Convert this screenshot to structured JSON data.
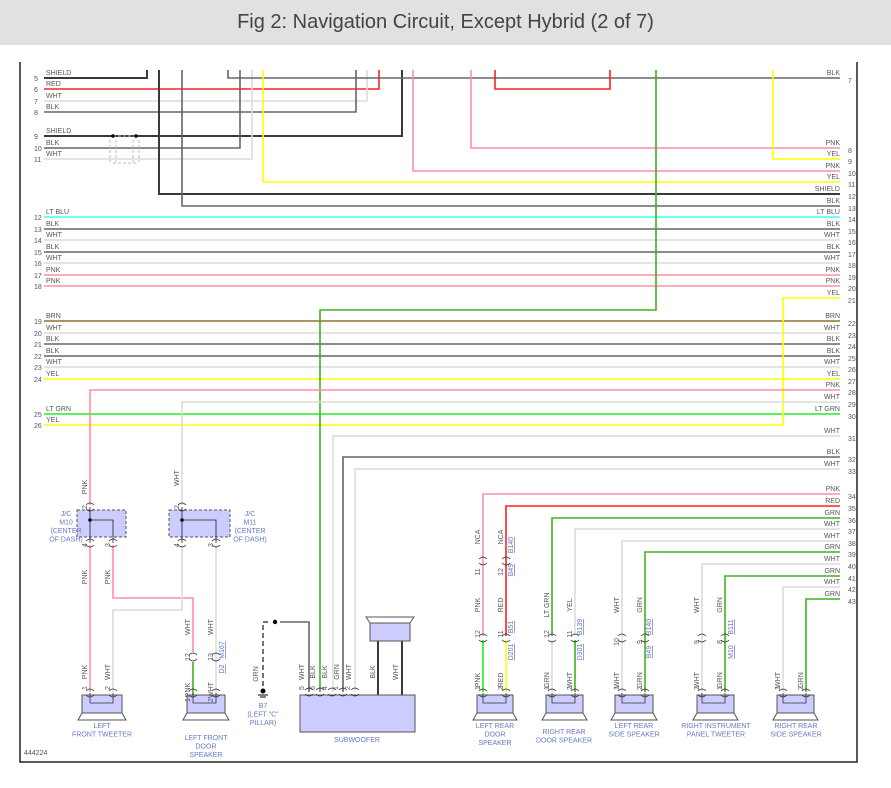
{
  "header": {
    "title": "Fig 2: Navigation Circuit, Except Hybrid (2 of 7)"
  },
  "figure_number": "444224",
  "wire_colors": {
    "SHIELD": "#3a3a3a",
    "BLK": "#666666",
    "WHT": "#dcdcdc",
    "RED": "#ff2020",
    "PNK": "#ff8fa5",
    "YEL": "#ffff00",
    "LT BLU": "#40ffff",
    "BRN": "#8b7332",
    "GRN": "#44b020",
    "LT GRN": "#22ee22"
  },
  "left_pins": [
    {
      "num": "5",
      "label": "SHIELD"
    },
    {
      "num": "6",
      "label": "RED"
    },
    {
      "num": "7",
      "label": "WHT"
    },
    {
      "num": "8",
      "label": "BLK"
    },
    {
      "num": "9",
      "label": "SHIELD"
    },
    {
      "num": "10",
      "label": "BLK"
    },
    {
      "num": "11",
      "label": "WHT"
    },
    {
      "num": "12",
      "label": "LT BLU"
    },
    {
      "num": "13",
      "label": "BLK"
    },
    {
      "num": "14",
      "label": "WHT"
    },
    {
      "num": "15",
      "label": "BLK"
    },
    {
      "num": "16",
      "label": "WHT"
    },
    {
      "num": "17",
      "label": "PNK"
    },
    {
      "num": "18",
      "label": "PNK"
    },
    {
      "num": "19",
      "label": "BRN"
    },
    {
      "num": "20",
      "label": "WHT"
    },
    {
      "num": "21",
      "label": "BLK"
    },
    {
      "num": "22",
      "label": "BLK"
    },
    {
      "num": "23",
      "label": "WHT"
    },
    {
      "num": "24",
      "label": "YEL"
    },
    {
      "num": "25",
      "label": "LT GRN"
    },
    {
      "num": "26",
      "label": "YEL"
    }
  ],
  "right_pins": [
    {
      "num": "7",
      "label": "BLK"
    },
    {
      "num": "8",
      "label": "PNK"
    },
    {
      "num": "9",
      "label": "YEL"
    },
    {
      "num": "10",
      "label": "PNK"
    },
    {
      "num": "11",
      "label": "YEL"
    },
    {
      "num": "12",
      "label": "SHIELD"
    },
    {
      "num": "13",
      "label": "BLK"
    },
    {
      "num": "14",
      "label": "LT BLU"
    },
    {
      "num": "15",
      "label": "BLK"
    },
    {
      "num": "16",
      "label": "WHT"
    },
    {
      "num": "17",
      "label": "BLK"
    },
    {
      "num": "18",
      "label": "WHT"
    },
    {
      "num": "19",
      "label": "PNK"
    },
    {
      "num": "20",
      "label": "PNK"
    },
    {
      "num": "21",
      "label": "YEL"
    },
    {
      "num": "22",
      "label": "BRN"
    },
    {
      "num": "23",
      "label": "WHT"
    },
    {
      "num": "24",
      "label": "BLK"
    },
    {
      "num": "25",
      "label": "BLK"
    },
    {
      "num": "26",
      "label": "WHT"
    },
    {
      "num": "27",
      "label": "YEL"
    },
    {
      "num": "28",
      "label": "PNK"
    },
    {
      "num": "29",
      "label": "WHT"
    },
    {
      "num": "30",
      "label": "LT GRN"
    },
    {
      "num": "31",
      "label": "WHT"
    },
    {
      "num": "32",
      "label": "BLK"
    },
    {
      "num": "33",
      "label": "WHT"
    },
    {
      "num": "34",
      "label": "PNK"
    },
    {
      "num": "35",
      "label": "RED"
    },
    {
      "num": "36",
      "label": "GRN"
    },
    {
      "num": "37",
      "label": "WHT"
    },
    {
      "num": "38",
      "label": "WHT"
    },
    {
      "num": "39",
      "label": "GRN"
    },
    {
      "num": "40",
      "label": "WHT"
    },
    {
      "num": "41",
      "label": "GRN"
    },
    {
      "num": "42",
      "label": "WHT"
    },
    {
      "num": "43",
      "label": "GRN"
    }
  ],
  "vertical_wire_labels": [
    "PNK",
    "WHT",
    "PNK",
    "PNK",
    "WHT",
    "WHT",
    "PNK",
    "WHT",
    "PNK",
    "WHT",
    "GRN",
    "WHT",
    "BLK",
    "BLK",
    "GRN",
    "WHT",
    "BLK",
    "WHT",
    "NCA",
    "NCA",
    "PNK",
    "RED",
    "PNK",
    "RED",
    "LT GRN",
    "YEL",
    "GRN",
    "WHT",
    "WHT",
    "GRN",
    "WHT",
    "GRN",
    "WHT",
    "GRN",
    "WHT",
    "GRN",
    "WHT",
    "GRN",
    "WHT",
    "GRN"
  ],
  "pin_numbers": [
    "2",
    "4",
    "3",
    "2",
    "4",
    "3",
    "12",
    "13",
    "1",
    "2",
    "1",
    "2",
    "5",
    "6",
    "4",
    "1",
    "2",
    "11",
    "12",
    "12",
    "11",
    "12",
    "11",
    "10",
    "9",
    "9",
    "8",
    "1",
    "2",
    "1",
    "2",
    "1",
    "2",
    "2",
    "1",
    "1",
    "2"
  ],
  "connector_ids": [
    "M167",
    "D2",
    "B140",
    "B49",
    "B51",
    "D201",
    "B139",
    "D301",
    "B140",
    "B49",
    "B111",
    "M10"
  ],
  "junctions": [
    {
      "lines": [
        "J/C",
        "M10",
        "(CENTER",
        "OF DASH)"
      ]
    },
    {
      "lines": [
        "J/C",
        "M11",
        "(CENTER",
        "OF DASH)"
      ]
    }
  ],
  "ground": {
    "lines": [
      "B7",
      "(LEFT \"C\"",
      "PILLAR)"
    ]
  },
  "components": [
    {
      "lines": [
        "LEFT",
        "FRONT TWEETER"
      ]
    },
    {
      "lines": [
        "LEFT FRONT",
        "DOOR",
        "SPEAKER"
      ]
    },
    {
      "lines": [
        "SUBWOOFER"
      ]
    },
    {
      "lines": [
        "LEFT REAR",
        "DOOR",
        "SPEAKER"
      ]
    },
    {
      "lines": [
        "RIGHT REAR",
        "DOOR SPEAKER"
      ]
    },
    {
      "lines": [
        "LEFT REAR",
        "SIDE SPEAKER"
      ]
    },
    {
      "lines": [
        "RIGHT INSTRUMENT",
        "PANEL TWEETER"
      ]
    },
    {
      "lines": [
        "RIGHT REAR",
        "SIDE SPEAKER"
      ]
    }
  ]
}
